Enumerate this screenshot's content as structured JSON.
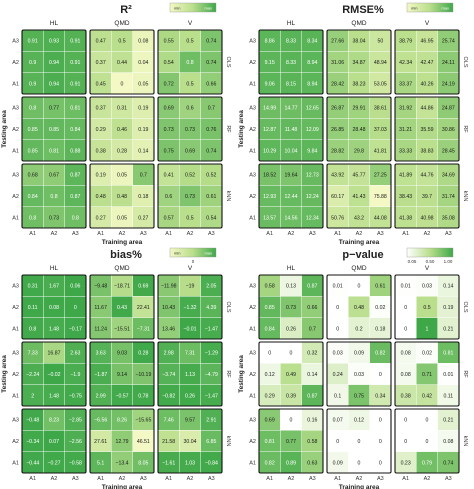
{
  "chart_data": [
    {
      "type": "heatmap",
      "title": "R²",
      "legend": {
        "low": "min",
        "high": "max",
        "ticks": []
      },
      "colors": {
        "low": "#f3f8c4",
        "mid": "#b9de8c",
        "high": "#3ea849"
      },
      "scale": [
        0,
        1
      ],
      "columns": [
        "HL",
        "QMD",
        "V"
      ],
      "rows": [
        "OLS",
        "RF",
        "kNN"
      ],
      "row_ticks": [
        "A3",
        "A2",
        "A1"
      ],
      "col_ticks": [
        "A1",
        "A2",
        "A3"
      ],
      "xlabel": "Training area",
      "ylabel": "Testing area",
      "values": [
        [
          [
            [
              "0.91",
              "0.93",
              "0.91"
            ],
            [
              "0.9",
              "0.94",
              "0.91"
            ],
            [
              "0.9",
              "0.94",
              "0.91"
            ]
          ],
          [
            [
              "0.47",
              "0.5",
              "0.08"
            ],
            [
              "0.37",
              "0.44",
              "0.04"
            ],
            [
              "0.45",
              "0",
              "0.05"
            ]
          ],
          [
            [
              "0.55",
              "0.5",
              "0.74"
            ],
            [
              "0.54",
              "0.8",
              "0.74"
            ],
            [
              "0.72",
              "0.5",
              "0.66"
            ]
          ]
        ],
        [
          [
            [
              "0.8",
              "0.77",
              "0.81"
            ],
            [
              "0.85",
              "0.85",
              "0.84"
            ],
            [
              "0.85",
              "0.81",
              "0.88"
            ]
          ],
          [
            [
              "0.37",
              "0.31",
              "0.19"
            ],
            [
              "0.29",
              "0.46",
              "0.19"
            ],
            [
              "0.38",
              "0.28",
              "0.14"
            ]
          ],
          [
            [
              "0.69",
              "0.6",
              "0.7"
            ],
            [
              "0.73",
              "0.73",
              "0.76"
            ],
            [
              "0.75",
              "0.69",
              "0.74"
            ]
          ]
        ],
        [
          [
            [
              "0.68",
              "0.67",
              "0.87"
            ],
            [
              "0.84",
              "0.8",
              "0.87"
            ],
            [
              "0.8",
              "0.73",
              "0.8"
            ]
          ],
          [
            [
              "0.19",
              "0.05",
              "0.7"
            ],
            [
              "0.48",
              "0.48",
              "0.18"
            ],
            [
              "0.27",
              "0.05",
              "0.27"
            ]
          ],
          [
            [
              "0.41",
              "0.52",
              "0.52"
            ],
            [
              "0.6",
              "0.73",
              "0.61"
            ],
            [
              "0.57",
              "0.5",
              "0.54"
            ]
          ]
        ]
      ]
    },
    {
      "type": "heatmap",
      "title": "RMSE%",
      "legend": {
        "low": "min",
        "high": "max",
        "ticks": []
      },
      "colors": {
        "low": "#f3f8c4",
        "mid": "#b9de8c",
        "high": "#3ea849"
      },
      "scale": [
        0,
        1
      ],
      "columns": [
        "HL",
        "QMD",
        "V"
      ],
      "rows": [
        "OLS",
        "RF",
        "kNN"
      ],
      "row_ticks": [
        "A3",
        "A2",
        "A1"
      ],
      "col_ticks": [
        "A1",
        "A2",
        "A3"
      ],
      "xlabel": "Training area",
      "ylabel": "Testing area",
      "values": [
        [
          [
            [
              "8.86",
              "8.33",
              "8.34"
            ],
            [
              "9.15",
              "8.33",
              "8.94"
            ],
            [
              "9.06",
              "8.15",
              "8.94"
            ]
          ],
          [
            [
              "27.66",
              "38.04",
              "50"
            ],
            [
              "31.06",
              "34.87",
              "48.94"
            ],
            [
              "28.42",
              "38.23",
              "53.05"
            ]
          ],
          [
            [
              "38.79",
              "46.95",
              "25.74"
            ],
            [
              "42.34",
              "42.47",
              "24.11"
            ],
            [
              "33.37",
              "40.26",
              "24.19"
            ]
          ]
        ],
        [
          [
            [
              "14.99",
              "14.77",
              "12.65"
            ],
            [
              "12.87",
              "11.48",
              "12.09"
            ],
            [
              "10.29",
              "10.04",
              "9.84"
            ]
          ],
          [
            [
              "26.87",
              "29.91",
              "38.61"
            ],
            [
              "26.85",
              "28.48",
              "37.03"
            ],
            [
              "28.82",
              "29.8",
              "41.81"
            ]
          ],
          [
            [
              "31.92",
              "44.86",
              "24.87"
            ],
            [
              "31.21",
              "35.59",
              "30.86"
            ],
            [
              "33.33",
              "38.83",
              "28.45"
            ]
          ]
        ],
        [
          [
            [
              "18.52",
              "19.64",
              "12.73"
            ],
            [
              "12.93",
              "12.44",
              "12.24"
            ],
            [
              "13.57",
              "14.56",
              "12.34"
            ]
          ],
          [
            [
              "43.92",
              "45.77",
              "27.25"
            ],
            [
              "60.17",
              "41.43",
              "75.88"
            ],
            [
              "50.76",
              "43.2",
              "44.08"
            ]
          ],
          [
            [
              "41.89",
              "44.76",
              "34.69"
            ],
            [
              "38.43",
              "39.7",
              "31.74"
            ],
            [
              "41.38",
              "40.98",
              "35.08"
            ]
          ]
        ]
      ]
    },
    {
      "type": "heatmap",
      "title": "bias%",
      "legend": {
        "low": "min",
        "high": "max",
        "ticks": [
          "",
          "0",
          ""
        ]
      },
      "colors": {
        "low": "#f3f8c4",
        "mid": "#b9de8c",
        "high": "#3ea849"
      },
      "scale": [
        0,
        1
      ],
      "columns": [
        "HL",
        "QMD",
        "V"
      ],
      "rows": [
        "OLS",
        "RF",
        "kNN"
      ],
      "row_ticks": [
        "A3",
        "A2",
        "A1"
      ],
      "col_ticks": [
        "A1",
        "A2",
        "A3"
      ],
      "xlabel": "Training area",
      "ylabel": "Testing area",
      "values": [
        [
          [
            [
              "0.31",
              "1.67",
              "0.06"
            ],
            [
              "0.11",
              "0.08",
              "0"
            ],
            [
              "0.8",
              "1.48",
              "-0.17"
            ]
          ],
          [
            [
              "-9.48",
              "-18.71",
              "0.69"
            ],
            [
              "11.67",
              "0.43",
              "22.41"
            ],
            [
              "11.24",
              "-15.51",
              "-7.31"
            ]
          ],
          [
            [
              "-11.98",
              "-19",
              "2.05"
            ],
            [
              "10.43",
              "-1.32",
              "4.39"
            ],
            [
              "13.46",
              "-0.01",
              "-1.47"
            ]
          ]
        ],
        [
          [
            [
              "7.33",
              "16.87",
              "2.63"
            ],
            [
              "-2.24",
              "-0.02",
              "-1.9"
            ],
            [
              "2",
              "1.48",
              "-0.75"
            ]
          ],
          [
            [
              "3.63",
              "9.03",
              "0.28"
            ],
            [
              "-1.87",
              "9.14",
              "-10.19"
            ],
            [
              "2.99",
              "-0.57",
              "0.78"
            ]
          ],
          [
            [
              "2.98",
              "7.31",
              "-1.29"
            ],
            [
              "-3.74",
              "1.13",
              "-4.79"
            ],
            [
              "-0.82",
              "0.26",
              "-1.47"
            ]
          ]
        ],
        [
          [
            [
              "-0.48",
              "8.23",
              "-2.85"
            ],
            [
              "-0.34",
              "0.07",
              "-2.56"
            ],
            [
              "-0.44",
              "-0.27",
              "-0.58"
            ]
          ],
          [
            [
              "-6.56",
              "8.26",
              "-15.65"
            ],
            [
              "27.61",
              "12.79",
              "46.51"
            ],
            [
              "5.1",
              "-13.4",
              "8.05"
            ]
          ],
          [
            [
              "7.46",
              "9.57",
              "2.91"
            ],
            [
              "21.58",
              "30.04",
              "6.85"
            ],
            [
              "-1.61",
              "1.03",
              "-0.84"
            ]
          ]
        ]
      ]
    },
    {
      "type": "heatmap",
      "title": "p−value",
      "legend": {
        "low": "",
        "high": "",
        "ticks": [
          "0.05",
          "0.50",
          "1.00"
        ]
      },
      "colors": {
        "low": "#ffffff",
        "mid": "#b9de8c",
        "high": "#3ea849"
      },
      "scale": [
        0,
        1
      ],
      "columns": [
        "HL",
        "QMD",
        "V"
      ],
      "rows": [
        "OLS",
        "RF",
        "kNN"
      ],
      "row_ticks": [
        "A3",
        "A2",
        "A1"
      ],
      "col_ticks": [
        "A1",
        "A2",
        "A3"
      ],
      "xlabel": "Training area",
      "ylabel": "Testing area",
      "values": [
        [
          [
            [
              "0.58",
              "0.13",
              "0.87"
            ],
            [
              "0.85",
              "0.73",
              "0.66"
            ],
            [
              "0.84",
              "0.26",
              "0.7"
            ]
          ],
          [
            [
              "0.01",
              "0",
              "0.61"
            ],
            [
              "0",
              "0.48",
              "0.02"
            ],
            [
              "0",
              "0.2",
              "0.18"
            ]
          ],
          [
            [
              "0.01",
              "0.03",
              "0.14"
            ],
            [
              "0",
              "0.5",
              "0.19"
            ],
            [
              "0",
              "1",
              "0.21"
            ]
          ]
        ],
        [
          [
            [
              "0",
              "0",
              "0.32"
            ],
            [
              "0.12",
              "0.49",
              "0.14"
            ],
            [
              "0.29",
              "0.39",
              "0.87"
            ]
          ],
          [
            [
              "0.03",
              "0.09",
              "0.82"
            ],
            [
              "0.24",
              "0.03",
              "0"
            ],
            [
              "0.1",
              "0.75",
              "0.34"
            ]
          ],
          [
            [
              "0.08",
              "0.02",
              "0.81"
            ],
            [
              "0.08",
              "0.71",
              "0.01"
            ],
            [
              "0.38",
              "0.42",
              "0.11"
            ]
          ]
        ],
        [
          [
            [
              "0.69",
              "0",
              "0.16"
            ],
            [
              "0.81",
              "0.77",
              "0.58"
            ],
            [
              "0.82",
              "0.89",
              "0.63"
            ]
          ],
          [
            [
              "0.07",
              "0.12",
              "0"
            ],
            [
              "0",
              "0",
              "0"
            ],
            [
              "0.09",
              "0",
              "0"
            ]
          ],
          [
            [
              "0",
              "0",
              "0.21"
            ],
            [
              "0",
              "0",
              "0.08"
            ],
            [
              "0.23",
              "0.79",
              "0.74"
            ]
          ]
        ]
      ]
    }
  ]
}
